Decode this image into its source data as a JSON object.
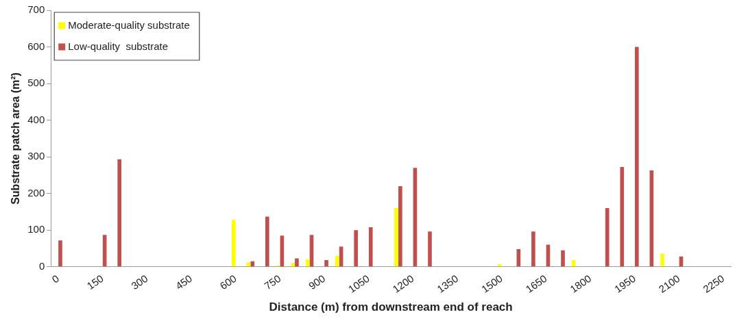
{
  "chart_data": {
    "type": "bar",
    "xlabel": "Distance (m) from downstream end of reach",
    "ylabel": "Substrate patch area (m²)",
    "categories": [
      "0",
      null,
      null,
      "150",
      null,
      null,
      "300",
      null,
      null,
      "450",
      null,
      null,
      "600",
      null,
      null,
      "750",
      null,
      null,
      "900",
      null,
      null,
      "1050",
      null,
      null,
      "1200",
      null,
      null,
      "1350",
      null,
      null,
      "1500",
      null,
      null,
      "1650",
      null,
      null,
      "1800",
      null,
      null,
      "1950",
      null,
      null,
      "2100",
      null,
      null,
      "2250"
    ],
    "series": [
      {
        "name": "Moderate-quality substrate",
        "color": "#ffff00",
        "values": [
          null,
          null,
          null,
          null,
          null,
          null,
          null,
          null,
          null,
          null,
          null,
          null,
          128,
          12,
          null,
          3,
          10,
          20,
          null,
          30,
          null,
          null,
          null,
          160,
          null,
          null,
          null,
          null,
          null,
          null,
          7,
          null,
          null,
          null,
          null,
          18,
          null,
          null,
          null,
          null,
          null,
          36,
          null,
          null,
          null,
          null
        ]
      },
      {
        "name": "Low-quality  substrate",
        "color": "#c0504d",
        "values": [
          72,
          null,
          null,
          87,
          293,
          null,
          null,
          null,
          null,
          null,
          null,
          null,
          null,
          15,
          137,
          85,
          23,
          87,
          18,
          55,
          100,
          108,
          null,
          220,
          270,
          96,
          null,
          null,
          null,
          null,
          null,
          48,
          96,
          60,
          45,
          null,
          null,
          160,
          272,
          600,
          263,
          null,
          28,
          null,
          null,
          null
        ]
      }
    ],
    "ylim": [
      0,
      700
    ],
    "yticks": [
      0,
      100,
      200,
      300,
      400,
      500,
      600,
      700
    ],
    "grid": false,
    "legend": "top left"
  }
}
